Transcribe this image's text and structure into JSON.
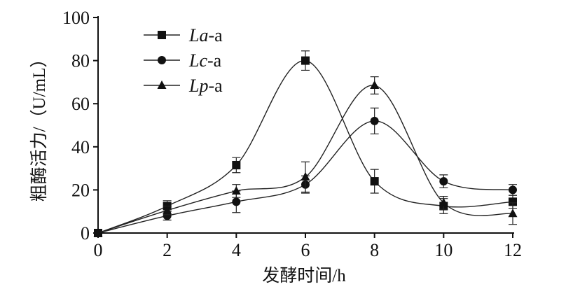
{
  "chart_data": {
    "type": "line",
    "title": "",
    "xlabel": "发酵时间/h",
    "ylabel": "粗酶活力/（U/mL）",
    "xlim": [
      0,
      12
    ],
    "ylim": [
      0,
      100
    ],
    "x_ticks": [
      0,
      2,
      4,
      6,
      8,
      10,
      12
    ],
    "y_ticks": [
      0,
      20,
      40,
      60,
      80,
      100
    ],
    "grid": false,
    "legend_position": "top-left",
    "x": [
      0,
      2,
      4,
      6,
      8,
      10,
      12
    ],
    "series": [
      {
        "name": "La-a",
        "name_italic": "La",
        "name_suffix": "-a",
        "marker": "square",
        "values": [
          0,
          12.5,
          31.5,
          80,
          24,
          12.5,
          14.5
        ],
        "errors": [
          0,
          2.5,
          3.5,
          4.5,
          5.5,
          3.5,
          3
        ]
      },
      {
        "name": "Lc-a",
        "name_italic": "Lc",
        "name_suffix": "-a",
        "marker": "circle",
        "values": [
          0,
          8,
          14.5,
          22.5,
          52,
          24,
          20
        ],
        "errors": [
          0,
          2,
          5,
          4,
          6,
          3,
          2.5
        ]
      },
      {
        "name": "Lp-a",
        "name_italic": "Lp",
        "name_suffix": "-a",
        "marker": "triangle",
        "values": [
          0,
          10.5,
          19.5,
          26,
          68.5,
          14,
          9
        ],
        "errors": [
          0,
          2,
          3,
          7,
          4,
          3,
          5
        ]
      }
    ]
  }
}
